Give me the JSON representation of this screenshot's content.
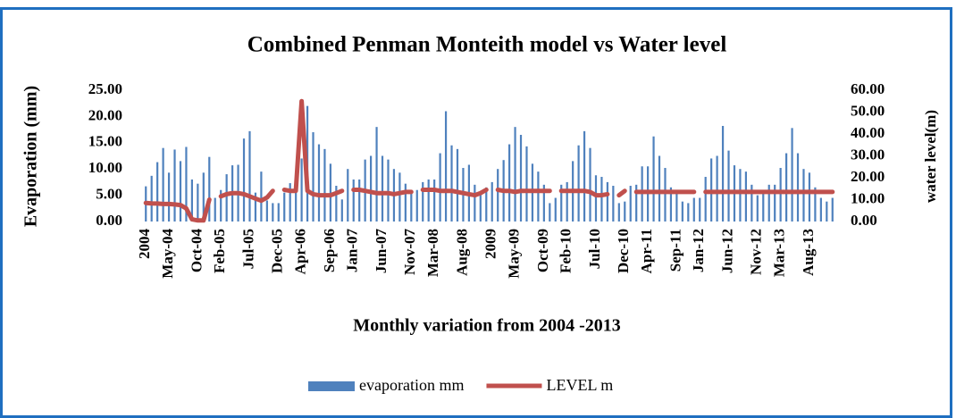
{
  "chart_data": {
    "type": "bar-line",
    "title": "Combined Penman Monteith model vs Water level",
    "x_label": "Monthly variation from 2004 -2013",
    "y_label": "Evaporation (mm)",
    "y2_label": "water level(m)",
    "categories": [
      "2004",
      null,
      null,
      null,
      "May-04",
      null,
      null,
      null,
      null,
      "Oct-04",
      null,
      null,
      null,
      "Feb-05",
      null,
      null,
      null,
      null,
      "Jul-05",
      null,
      null,
      null,
      null,
      "Dec-05",
      null,
      null,
      null,
      "Apr-06",
      null,
      null,
      null,
      null,
      "Sep-06",
      null,
      null,
      null,
      "Jan-07",
      null,
      null,
      null,
      null,
      "Jun-07",
      null,
      null,
      null,
      null,
      "Nov-07",
      null,
      null,
      null,
      "Mar-08",
      null,
      null,
      null,
      null,
      "Aug-08",
      null,
      null,
      null,
      null,
      "2009",
      null,
      null,
      null,
      "May-09",
      null,
      null,
      null,
      null,
      "Oct-09",
      null,
      null,
      null,
      "Feb-10",
      null,
      null,
      null,
      null,
      "Jul-10",
      null,
      null,
      null,
      null,
      "Dec-10",
      null,
      null,
      null,
      "Apr-11",
      null,
      null,
      null,
      null,
      "Sep-11",
      null,
      null,
      null,
      "Jan-12",
      null,
      null,
      null,
      null,
      "Jun-12",
      null,
      null,
      null,
      null,
      "Nov-12",
      null,
      null,
      null,
      "Mar-13",
      null,
      null,
      null,
      null,
      "Aug-13",
      null,
      null,
      null,
      null
    ],
    "series": [
      {
        "name": "evaporation mm",
        "color": "#4f81bd",
        "kind": "bar",
        "values": [
          6.7,
          8.7,
          11.3,
          14.0,
          9.3,
          13.7,
          11.5,
          14.2,
          8.0,
          7.2,
          9.3,
          12.3,
          4.5,
          6.0,
          9.0,
          10.7,
          10.8,
          15.8,
          17.2,
          5.5,
          9.5,
          4.0,
          3.5,
          3.5,
          5.5,
          7.3,
          9.2,
          12.0,
          22.0,
          17.0,
          14.7,
          13.8,
          11.0,
          6.8,
          4.2,
          10.0,
          8.0,
          8.0,
          11.8,
          12.5,
          18.0,
          12.5,
          11.8,
          10.0,
          9.3,
          7.2,
          5.5,
          6.0,
          7.5,
          8.0,
          8.0,
          13.0,
          21.0,
          14.5,
          13.8,
          10.2,
          10.8,
          7.0,
          5.5,
          6.5,
          7.5,
          10.0,
          11.7,
          14.7,
          18.0,
          16.5,
          14.3,
          11.0,
          9.5,
          7.0,
          3.5,
          4.5,
          7.0,
          7.5,
          11.5,
          14.5,
          17.2,
          14.0,
          8.8,
          8.5,
          7.5,
          6.8,
          3.5,
          3.8,
          6.8,
          7.0,
          10.5,
          10.5,
          16.2,
          12.5,
          10.2,
          6.5,
          6.0,
          3.8,
          3.5,
          4.5,
          4.5,
          8.5,
          12.0,
          12.5,
          18.2,
          13.5,
          10.7,
          10.0,
          9.5,
          7.0,
          5.0,
          5.5,
          7.0,
          7.0,
          10.2,
          13.0,
          17.8,
          13.0,
          10.0,
          9.3,
          6.5,
          4.5,
          3.8,
          4.5
        ]
      },
      {
        "name": "LEVEL m",
        "color": "#c0504d",
        "kind": "line",
        "axis": "y2",
        "values": [
          8.5,
          8.3,
          8.2,
          8.0,
          8.0,
          7.8,
          7.5,
          6.0,
          1.0,
          0.5,
          0.5,
          10.0,
          null,
          11.5,
          12.5,
          13.0,
          13.0,
          12.5,
          11.5,
          10.5,
          9.5,
          11.0,
          14.0,
          null,
          14.5,
          14.0,
          14.0,
          55.0,
          14.0,
          12.5,
          12.0,
          12.0,
          12.0,
          13.0,
          14.0,
          null,
          14.5,
          14.5,
          14.0,
          13.5,
          13.0,
          13.0,
          13.0,
          12.5,
          13.0,
          13.5,
          13.5,
          null,
          14.5,
          14.5,
          14.5,
          14.0,
          14.0,
          14.0,
          13.5,
          13.0,
          12.5,
          12.0,
          13.0,
          14.5,
          null,
          14.5,
          14.0,
          14.0,
          13.5,
          14.0,
          14.0,
          14.0,
          14.0,
          14.0,
          14.0,
          null,
          14.0,
          14.0,
          14.0,
          14.0,
          14.0,
          13.5,
          12.0,
          12.0,
          12.5,
          null,
          12.0,
          14.0,
          null,
          13.5,
          13.5,
          13.5,
          13.5,
          13.5,
          13.5,
          13.5,
          13.5,
          13.5,
          13.5,
          13.5,
          null,
          13.5,
          13.5,
          13.5,
          13.5,
          13.5,
          13.5,
          13.5,
          13.5,
          13.5,
          13.5,
          13.5,
          13.5,
          13.5,
          13.5,
          13.5,
          13.5,
          13.5,
          13.5,
          13.5,
          13.5,
          13.5,
          13.5,
          13.5
        ]
      }
    ],
    "ylim": [
      0,
      25
    ],
    "yticks": [
      {
        "value": 0,
        "label": "0.00"
      },
      {
        "value": 5,
        "label": "5.00"
      },
      {
        "value": 10,
        "label": "10.00"
      },
      {
        "value": 15,
        "label": "15.00"
      },
      {
        "value": 20,
        "label": "20.00"
      },
      {
        "value": 25,
        "label": "25.00"
      }
    ],
    "y2lim": [
      0,
      60
    ],
    "y2ticks": [
      {
        "value": 0,
        "label": "0.00"
      },
      {
        "value": 10,
        "label": "10.00"
      },
      {
        "value": 20,
        "label": "20.00"
      },
      {
        "value": 30,
        "label": "30.00"
      },
      {
        "value": 40,
        "label": "40.00"
      },
      {
        "value": 50,
        "label": "50.00"
      },
      {
        "value": 60,
        "label": "60.00"
      }
    ],
    "grid": false,
    "legend": "bottom"
  }
}
